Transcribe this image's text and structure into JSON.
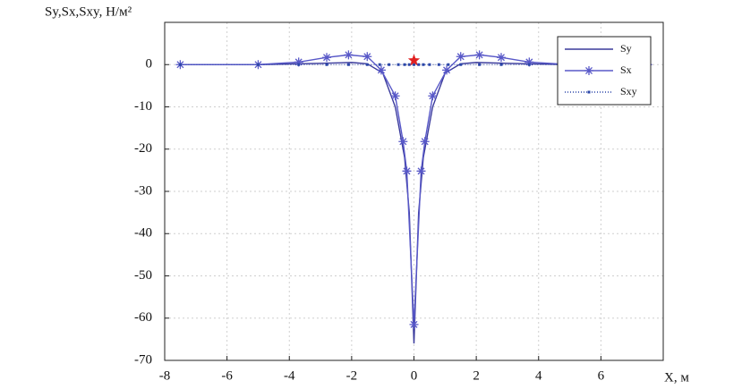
{
  "chart_data": {
    "type": "line",
    "title": "Sy,Sx,Sxy, Н/м²",
    "xlabel": "X, м",
    "xlim": [
      -8,
      8
    ],
    "xticks": [
      -8,
      -6,
      -4,
      -2,
      0,
      2,
      4,
      6
    ],
    "ylim": [
      -70,
      10
    ],
    "yticks": [
      -70,
      -60,
      -50,
      -40,
      -30,
      -20,
      -10,
      0
    ],
    "grid": true,
    "legend": "upper right",
    "series": [
      {
        "name": "Sy",
        "color": "#3a3a9c",
        "style": "solid",
        "x": [
          -7.5,
          -5,
          -3,
          -2,
          -1.5,
          -1,
          -0.6,
          -0.3,
          -0.15,
          0,
          0.15,
          0.3,
          0.6,
          1,
          1.5,
          2,
          3,
          5,
          7.5
        ],
        "values": [
          0,
          0,
          0.3,
          0.5,
          0.2,
          -2,
          -10,
          -22,
          -35,
          -66,
          -35,
          -22,
          -10,
          -2,
          0.2,
          0.5,
          0.3,
          0,
          0
        ]
      },
      {
        "name": "Sx",
        "color": "#5858c8",
        "style": "star",
        "x": [
          -7.5,
          -5,
          -3.7,
          -2.8,
          -2.1,
          -1.5,
          -1.05,
          -0.6,
          -0.35,
          -0.23,
          0,
          0.23,
          0.35,
          0.6,
          1.05,
          1.5,
          2.1,
          2.8,
          3.7,
          5,
          7.5
        ],
        "values": [
          0,
          0,
          0.6,
          1.7,
          2.3,
          1.9,
          -1.3,
          -7.4,
          -18.2,
          -25.2,
          -61.5,
          -25.2,
          -18.2,
          -7.4,
          -1.3,
          1.9,
          2.3,
          1.7,
          0.6,
          0,
          0
        ]
      },
      {
        "name": "Sxy",
        "color": "#2b46a8",
        "style": "dot",
        "x": [
          -7.5,
          -5,
          -3.7,
          -2.8,
          -2.1,
          -1.5,
          -1.1,
          -0.8,
          -0.5,
          -0.3,
          -0.15,
          0,
          0.15,
          0.3,
          0.5,
          0.8,
          1.1,
          1.5,
          2.1,
          2.8,
          3.7,
          5,
          7.5
        ],
        "values": [
          0,
          0,
          0,
          0,
          0,
          0,
          0,
          0,
          0,
          0,
          0,
          0,
          0,
          0,
          0,
          0,
          0,
          0,
          0,
          0,
          0,
          0,
          0
        ]
      }
    ],
    "marker": {
      "x": 0,
      "y": 1,
      "color": "#e02020"
    }
  }
}
